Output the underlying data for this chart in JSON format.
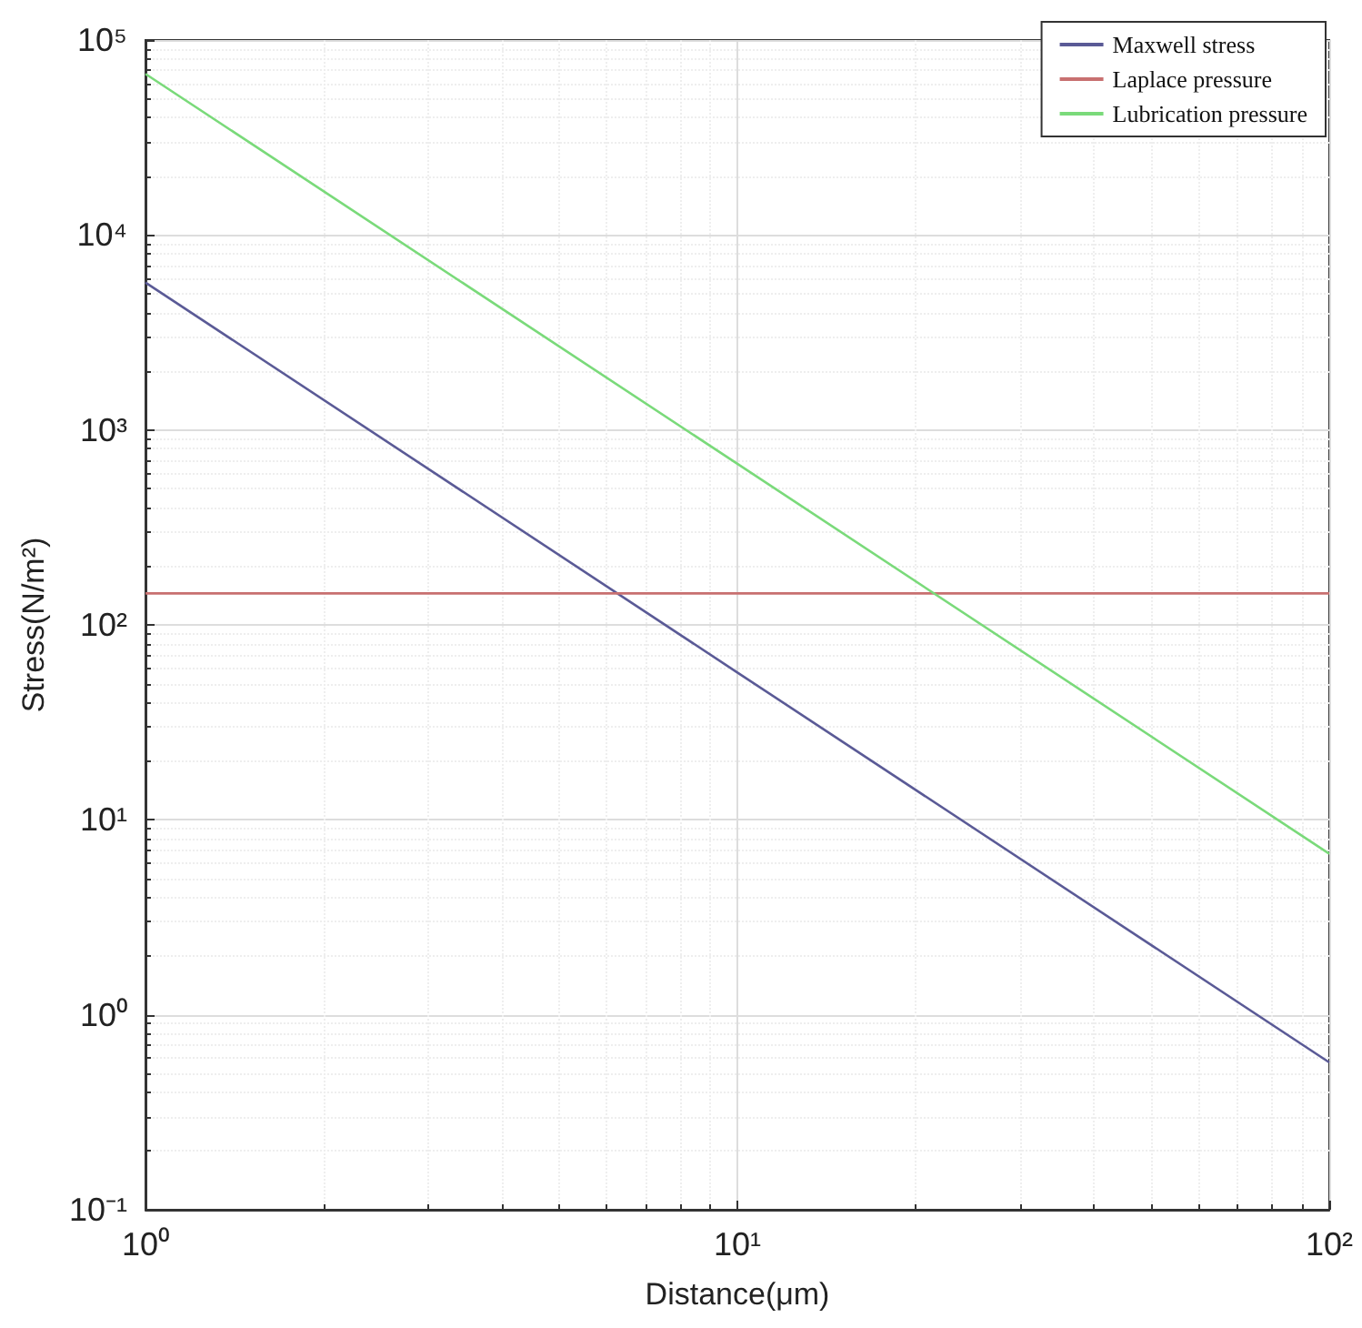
{
  "chart_data": {
    "type": "line",
    "xlabel": "Distance(μm)",
    "ylabel": "Stress(N/m²)",
    "x": [
      1,
      10,
      100
    ],
    "series": [
      {
        "name": "Maxwell stress",
        "color": "#5a5a96",
        "values": [
          5700,
          57,
          0.57
        ]
      },
      {
        "name": "Laplace pressure",
        "color": "#c87070",
        "values": [
          145,
          145,
          145
        ]
      },
      {
        "name": "Lubrication pressure",
        "color": "#7ada7a",
        "values": [
          67000,
          670,
          6.7
        ]
      }
    ],
    "log": "xy",
    "xlim": [
      1,
      100
    ],
    "ylim": [
      0.1,
      100000
    ],
    "xticks": [
      {
        "value": 1,
        "label": "10⁰"
      },
      {
        "value": 10,
        "label": "10¹"
      },
      {
        "value": 100,
        "label": "10²"
      }
    ],
    "yticks": [
      {
        "value": 0.1,
        "label": "10⁻¹"
      },
      {
        "value": 1,
        "label": "10⁰"
      },
      {
        "value": 10,
        "label": "10¹"
      },
      {
        "value": 100,
        "label": "10²"
      },
      {
        "value": 1000,
        "label": "10³"
      },
      {
        "value": 10000,
        "label": "10⁴"
      },
      {
        "value": 100000,
        "label": "10⁵"
      }
    ],
    "grid": true,
    "legend": "top right",
    "marker": "none",
    "line_style": "solid"
  }
}
